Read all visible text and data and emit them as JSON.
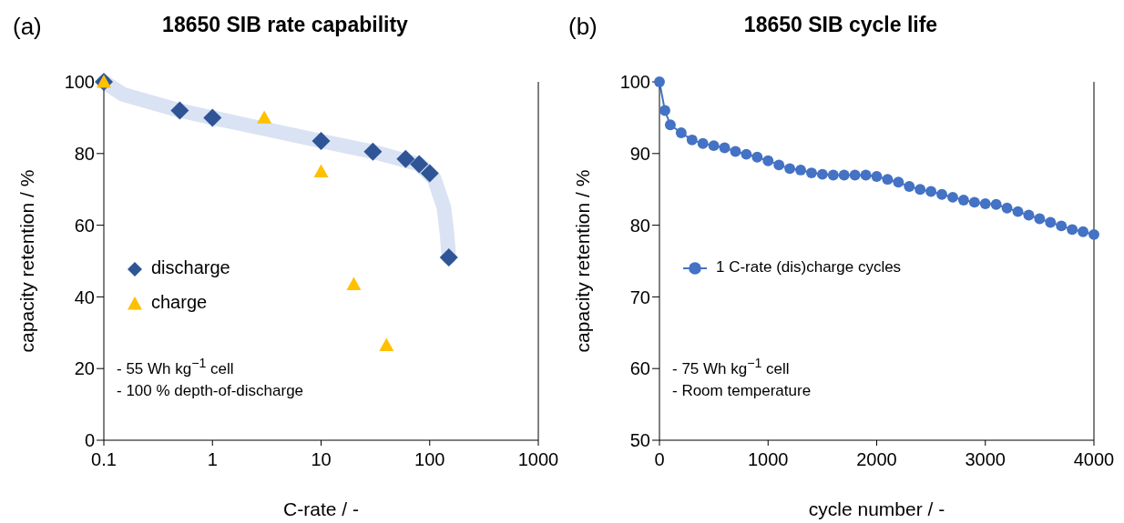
{
  "chart_data": [
    {
      "type": "scatter",
      "title": "18650 SIB rate capability",
      "xlabel": "C-rate / -",
      "ylabel": "capacity retention / %",
      "log": "x",
      "xlim": [
        0.1,
        1000
      ],
      "xticks": [
        0.1,
        1,
        10,
        100,
        1000
      ],
      "ylim": [
        0,
        100
      ],
      "yticks": [
        0,
        20,
        40,
        60,
        80,
        100
      ],
      "legend": "left",
      "annotations": [
        "(a)",
        "- 55 Wh kg$^{−1}$ cell",
        "- 100 % depth-of-discharge"
      ],
      "series": [
        {
          "type": "line",
          "color": "#dae3f3",
          "marker": "none",
          "x": [
            0.1,
            0.15,
            0.5,
            1,
            10,
            30,
            80,
            110,
            135,
            145,
            150
          ],
          "values": [
            100,
            96.5,
            92,
            90,
            83.5,
            80.5,
            77,
            73,
            65,
            57,
            51
          ]
        },
        {
          "name": "discharge",
          "color": "#2f5597",
          "marker": "diamond",
          "x": [
            0.1,
            0.5,
            1,
            10,
            30,
            60,
            80,
            100,
            150
          ],
          "values": [
            100,
            92,
            90,
            83.5,
            80.5,
            78.5,
            77,
            74.5,
            51
          ]
        },
        {
          "name": "charge",
          "color": "#ffc000",
          "marker": "triangle",
          "x": [
            0.1,
            3,
            10,
            20,
            40
          ],
          "values": [
            100,
            90,
            75,
            43.5,
            26.5
          ]
        }
      ]
    },
    {
      "type": "line",
      "title": "18650 SIB cycle life",
      "xlabel": "cycle number / -",
      "ylabel": "capacity retention / %",
      "xlim": [
        0,
        4000
      ],
      "xticks": [
        0,
        1000,
        2000,
        3000,
        4000
      ],
      "ylim": [
        50,
        100
      ],
      "yticks": [
        50,
        60,
        70,
        80,
        90,
        100
      ],
      "legend": "left",
      "marker": "circle",
      "annotations": [
        "(b)",
        "- 75 Wh kg$^{−1}$ cell",
        "- Room temperature"
      ],
      "x": [
        0,
        50,
        100,
        200,
        300,
        400,
        500,
        600,
        700,
        800,
        900,
        1000,
        1100,
        1200,
        1300,
        1400,
        1500,
        1600,
        1700,
        1800,
        1900,
        2000,
        2100,
        2200,
        2300,
        2400,
        2500,
        2600,
        2700,
        2800,
        2900,
        3000,
        3100,
        3200,
        3300,
        3400,
        3500,
        3600,
        3700,
        3800,
        3900,
        4000
      ],
      "series": [
        {
          "name": "1 C-rate (dis)charge cycles",
          "color": "#4472c4",
          "values": [
            100,
            96,
            94,
            92.9,
            91.9,
            91.4,
            91.1,
            90.8,
            90.3,
            89.9,
            89.5,
            89,
            88.4,
            87.9,
            87.7,
            87.3,
            87.1,
            87,
            87,
            87,
            87,
            86.8,
            86.4,
            86,
            85.4,
            85,
            84.7,
            84.3,
            83.9,
            83.5,
            83.2,
            83,
            82.9,
            82.4,
            81.9,
            81.4,
            80.9,
            80.4,
            79.9,
            79.4,
            79.1,
            78.7
          ]
        }
      ]
    }
  ]
}
